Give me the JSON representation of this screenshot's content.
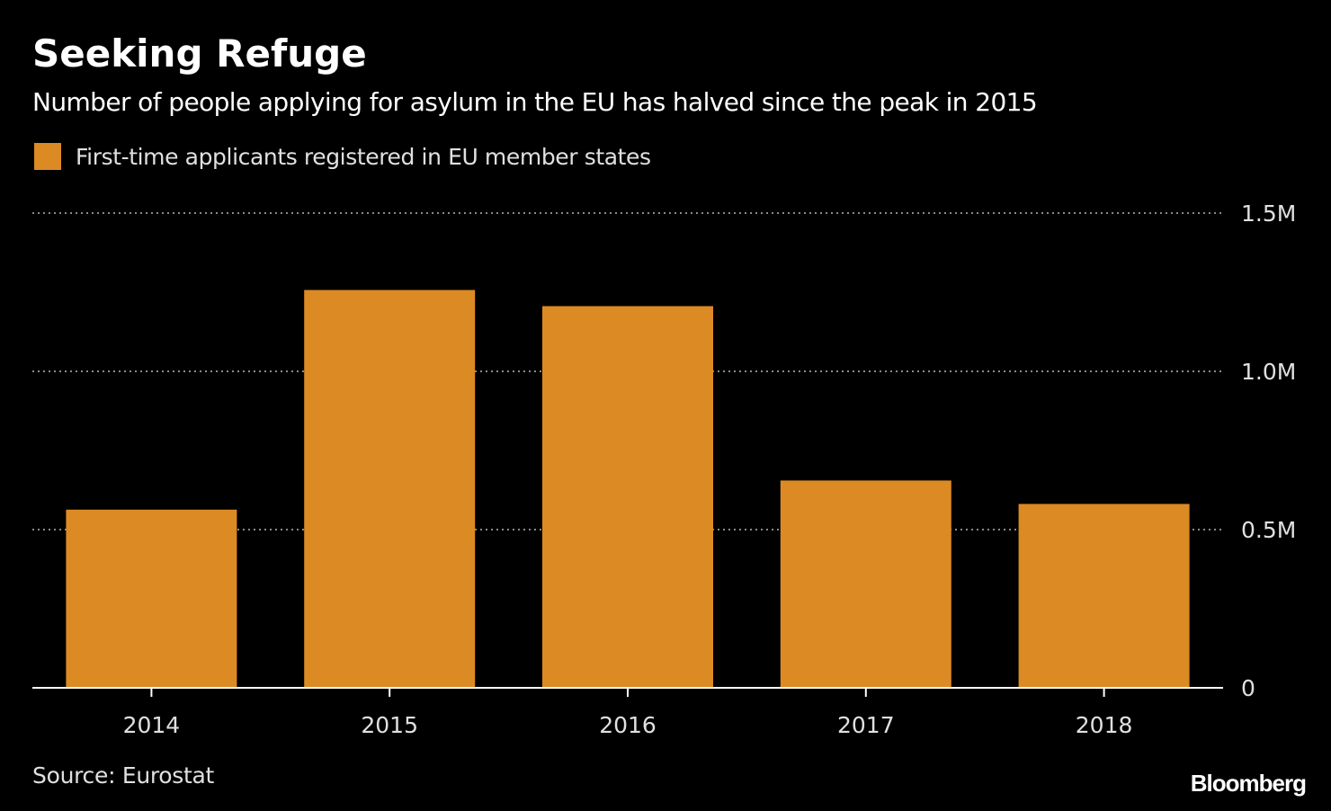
{
  "title": "Seeking Refuge",
  "subtitle": "Number of people applying for asylum in the EU has halved since the peak in 2015",
  "legend": {
    "label": "First-time applicants registered in EU member states"
  },
  "source": "Source: Eurostat",
  "brand": "Bloomberg",
  "colors": {
    "background": "#000000",
    "bar": "#dc8a24",
    "grid": "#8a8a8a",
    "axis": "#ffffff",
    "tick_text": "#e0e0e0"
  },
  "chart_data": {
    "type": "bar",
    "title": "Seeking Refuge",
    "categories": [
      "2014",
      "2015",
      "2016",
      "2017",
      "2018"
    ],
    "series": [
      {
        "name": "First-time applicants registered in EU member states",
        "values": [
          0.563,
          1.257,
          1.206,
          0.655,
          0.581
        ]
      }
    ],
    "unit": "M",
    "ylim": [
      0,
      1.5
    ],
    "yticks": [
      {
        "value": 0,
        "label": "0"
      },
      {
        "value": 0.5,
        "label": "0.5M"
      },
      {
        "value": 1.0,
        "label": "1.0M"
      },
      {
        "value": 1.5,
        "label": "1.5M"
      }
    ],
    "y_axis_side": "right",
    "grid": true,
    "xlabel": "",
    "ylabel": ""
  }
}
